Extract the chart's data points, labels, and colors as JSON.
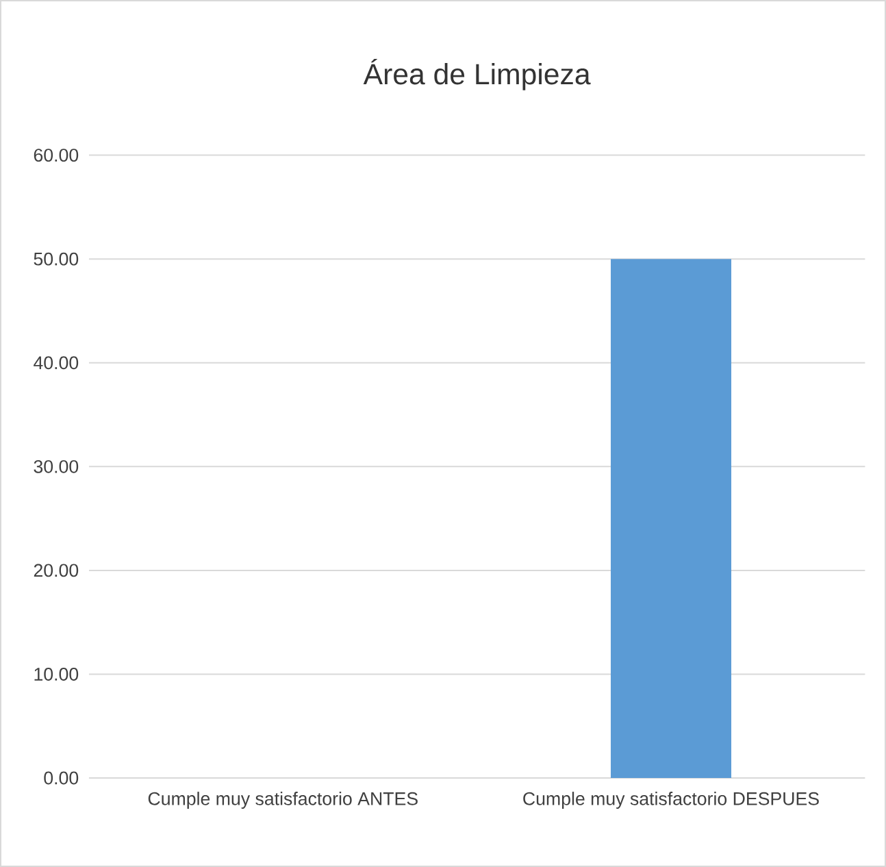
{
  "chart_data": {
    "type": "bar",
    "title": "Área de Limpieza",
    "categories": [
      "Cumple muy satisfactorio ANTES",
      "Cumple muy satisfactorio DESPUES"
    ],
    "values": [
      0,
      50
    ],
    "color": "#5b9bd5",
    "ylim": [
      0,
      60
    ],
    "yticks": [
      {
        "value": 0,
        "label": "0.00"
      },
      {
        "value": 10,
        "label": "10.00"
      },
      {
        "value": 20,
        "label": "20.00"
      },
      {
        "value": 30,
        "label": "30.00"
      },
      {
        "value": 40,
        "label": "40.00"
      },
      {
        "value": 50,
        "label": "50.00"
      },
      {
        "value": 60,
        "label": "60.00"
      }
    ],
    "grid": "y"
  }
}
